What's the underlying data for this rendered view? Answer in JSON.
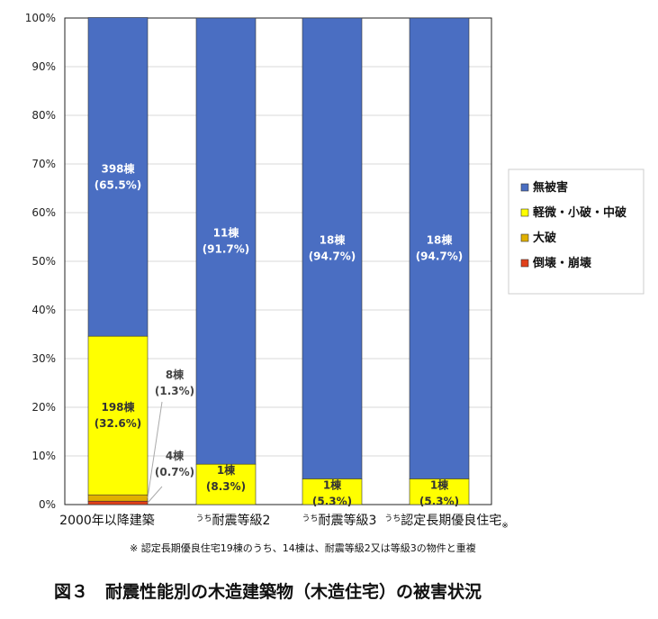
{
  "chart_data": {
    "type": "bar",
    "stacked": true,
    "ylim": [
      0,
      100
    ],
    "y_unit": "%",
    "grid": true,
    "yticks": [
      "0%",
      "10%",
      "20%",
      "30%",
      "40%",
      "50%",
      "60%",
      "70%",
      "80%",
      "90%",
      "100%"
    ],
    "categories": [
      {
        "label": "2000年以降建築",
        "prefix": "",
        "suffix": ""
      },
      {
        "label": "耐震等級2",
        "prefix": "うち",
        "suffix": ""
      },
      {
        "label": "耐震等級3",
        "prefix": "うち",
        "suffix": ""
      },
      {
        "label": "認定長期優良住宅",
        "prefix": "うち",
        "suffix": "※"
      }
    ],
    "series": [
      {
        "name": "倒壊・崩壊",
        "color": "#E0401A",
        "values": [
          0.7,
          0,
          0,
          0
        ]
      },
      {
        "name": "大破",
        "color": "#E0B000",
        "values": [
          1.3,
          0,
          0,
          0
        ]
      },
      {
        "name": "軽微・小破・中破",
        "color": "#FFFF00",
        "values": [
          32.6,
          8.3,
          5.3,
          5.3
        ]
      },
      {
        "name": "無被害",
        "color": "#4A6EC2",
        "values": [
          65.5,
          91.7,
          94.7,
          94.7
        ]
      }
    ],
    "legend": {
      "placement": "right",
      "order": [
        "無被害",
        "軽微・小破・中破",
        "大破",
        "倒壊・崩壊"
      ]
    },
    "data_labels": [
      {
        "category": 0,
        "series": "無被害",
        "line1": "398棟",
        "line2": "(65.5%)",
        "color": "#ffffff"
      },
      {
        "category": 0,
        "series": "軽微・小破・中破",
        "line1": "198棟",
        "line2": "(32.6%)",
        "color": "#333333"
      },
      {
        "category": 0,
        "series": "大破",
        "line1": "8棟",
        "line2": "(1.3%)",
        "color": "#444444",
        "callout": true
      },
      {
        "category": 0,
        "series": "倒壊・崩壊",
        "line1": "4棟",
        "line2": "(0.7%)",
        "color": "#444444",
        "callout": true
      },
      {
        "category": 1,
        "series": "無被害",
        "line1": "11棟",
        "line2": "(91.7%)",
        "color": "#ffffff"
      },
      {
        "category": 1,
        "series": "軽微・小破・中破",
        "line1": "1棟",
        "line2": "(8.3%)",
        "color": "#333333"
      },
      {
        "category": 2,
        "series": "無被害",
        "line1": "18棟",
        "line2": "(94.7%)",
        "color": "#ffffff"
      },
      {
        "category": 2,
        "series": "軽微・小破・中破",
        "line1": "1棟",
        "line2": "(5.3%)",
        "color": "#333333"
      },
      {
        "category": 3,
        "series": "無被害",
        "line1": "18棟",
        "line2": "(94.7%)",
        "color": "#ffffff"
      },
      {
        "category": 3,
        "series": "軽微・小破・中破",
        "line1": "1棟",
        "line2": "(5.3%)",
        "color": "#333333"
      }
    ]
  },
  "note": "※ 認定長期優良住宅19棟のうち、14棟は、耐震等級2又は等級3の物件と重複",
  "caption": "図３　耐震性能別の木造建築物（木造住宅）の被害状況"
}
